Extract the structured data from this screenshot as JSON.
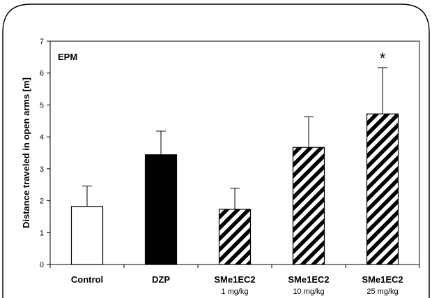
{
  "chart_data": {
    "type": "bar",
    "panel_label": "EPM",
    "ylabel": "Distance traveled in open arms [m]",
    "xlabel": "",
    "ylim": [
      0,
      7
    ],
    "yticks": [
      0,
      1,
      2,
      3,
      4,
      5,
      6,
      7
    ],
    "grid": false,
    "categories": [
      {
        "label": "Control",
        "sublabel": ""
      },
      {
        "label": "DZP",
        "sublabel": ""
      },
      {
        "label": "SMe1EC2",
        "sublabel": "1 mg/kg"
      },
      {
        "label": "SMe1EC2",
        "sublabel": "10 mg/kg"
      },
      {
        "label": "SMe1EC2",
        "sublabel": "25 mg/kg"
      }
    ],
    "values": [
      1.82,
      3.44,
      1.73,
      3.67,
      4.72
    ],
    "errors": [
      0.64,
      0.74,
      0.66,
      0.96,
      1.45
    ],
    "fills": [
      "white",
      "black",
      "hatch",
      "hatch",
      "hatch"
    ],
    "significance": [
      "",
      "",
      "",
      "",
      "*"
    ]
  }
}
